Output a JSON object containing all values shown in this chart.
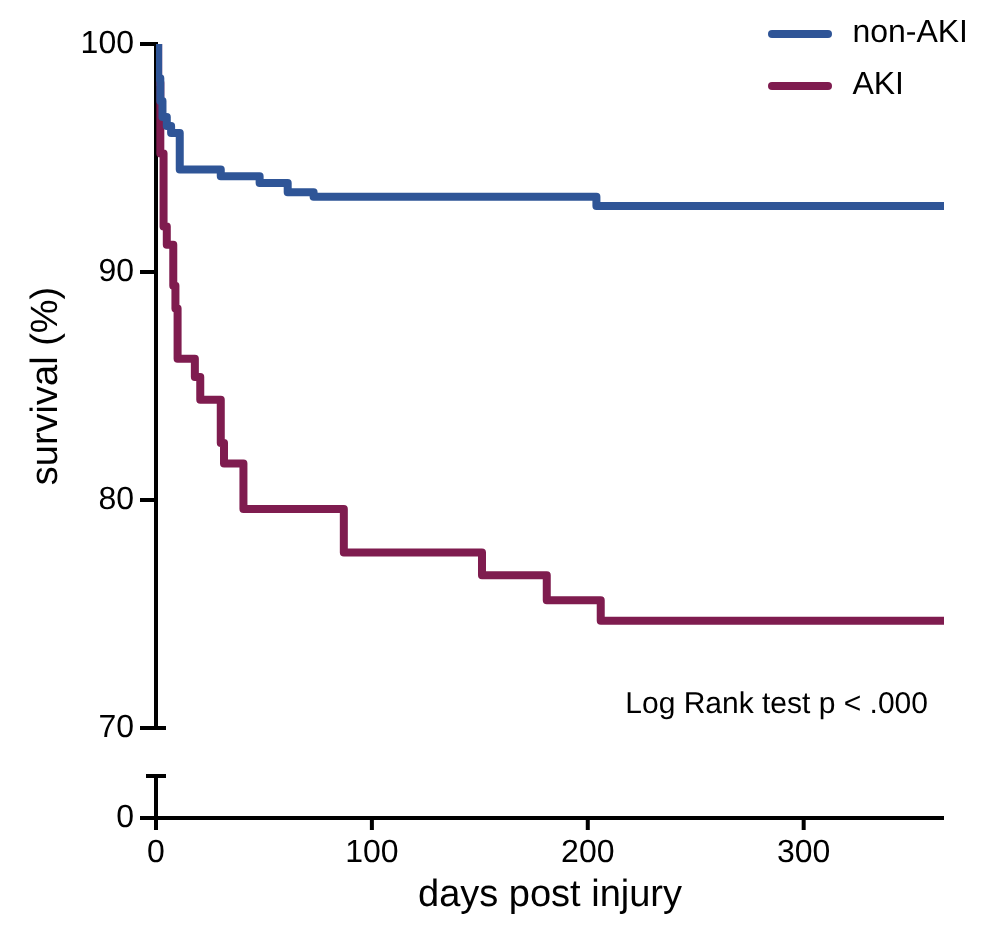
{
  "chart_data": {
    "type": "step",
    "xlabel": "days post injury",
    "ylabel": "survival (%)",
    "xlim": [
      0,
      365
    ],
    "xticks": [
      0,
      100,
      200,
      300
    ],
    "ylim": [
      70,
      100
    ],
    "yticks": [
      70,
      80,
      90,
      100
    ],
    "legend": "top right",
    "grid": false,
    "marker": "none",
    "line_style": "solid",
    "annotations": [
      "Log Rank test p < .000",
      "0"
    ],
    "series": [
      {
        "name": "non-AKI",
        "color": "#2f5597",
        "x": [
          0,
          1,
          2,
          3,
          5,
          7,
          11,
          30,
          48,
          61,
          73,
          204,
          365
        ],
        "values": [
          100,
          98.5,
          97.5,
          96.8,
          96.4,
          96.1,
          94.5,
          94.2,
          93.9,
          93.5,
          93.3,
          92.9,
          92.9
        ]
      },
      {
        "name": "AKI",
        "color": "#7f1c4f",
        "x": [
          0,
          1,
          2,
          3.5,
          5,
          8,
          9,
          10,
          18,
          20.5,
          30,
          31.5,
          40.5,
          87,
          151,
          181,
          206,
          365
        ],
        "values": [
          100,
          98.3,
          95.2,
          92,
          91.2,
          89.4,
          88.4,
          86.2,
          85.4,
          84.4,
          82.5,
          81.6,
          79.6,
          77.7,
          76.7,
          75.6,
          74.7,
          74.7
        ]
      }
    ]
  }
}
